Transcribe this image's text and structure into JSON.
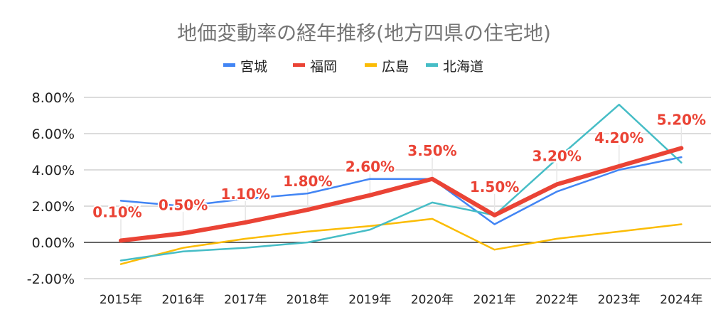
{
  "chart_data": {
    "type": "line",
    "title": "地価変動率の経年推移(地方四県の住宅地)",
    "xlabel": "",
    "ylabel": "",
    "categories": [
      "2015年",
      "2016年",
      "2017年",
      "2018年",
      "2019年",
      "2020年",
      "2021年",
      "2022年",
      "2023年",
      "2024年"
    ],
    "ylim": [
      -2,
      8
    ],
    "yticks": [
      8,
      6,
      4,
      2,
      0,
      -2
    ],
    "ytick_labels": [
      "8.00%",
      "6.00%",
      "4.00%",
      "2.00%",
      "0.00%",
      "-2.00%"
    ],
    "grid": true,
    "legend_position": "top",
    "series": [
      {
        "name": "宮城",
        "color": "#4285f4",
        "values": [
          2.3,
          2.0,
          2.4,
          2.7,
          3.5,
          3.5,
          1.0,
          2.8,
          4.0,
          4.7
        ]
      },
      {
        "name": "福岡",
        "color": "#ea4335",
        "values": [
          0.1,
          0.5,
          1.1,
          1.8,
          2.6,
          3.5,
          1.5,
          3.2,
          4.2,
          5.2
        ],
        "data_labels": [
          "0.10%",
          "0.50%",
          "1.10%",
          "1.80%",
          "2.60%",
          "3.50%",
          "1.50%",
          "3.20%",
          "4.20%",
          "5.20%"
        ]
      },
      {
        "name": "広島",
        "color": "#fbbc04",
        "values": [
          -1.2,
          -0.3,
          0.2,
          0.6,
          0.9,
          1.3,
          -0.4,
          0.2,
          0.6,
          1.0
        ]
      },
      {
        "name": "北海道",
        "color": "#46bdc6",
        "values": [
          -1.0,
          -0.5,
          -0.3,
          0.0,
          0.7,
          2.2,
          1.5,
          4.6,
          7.6,
          4.4
        ]
      }
    ]
  }
}
